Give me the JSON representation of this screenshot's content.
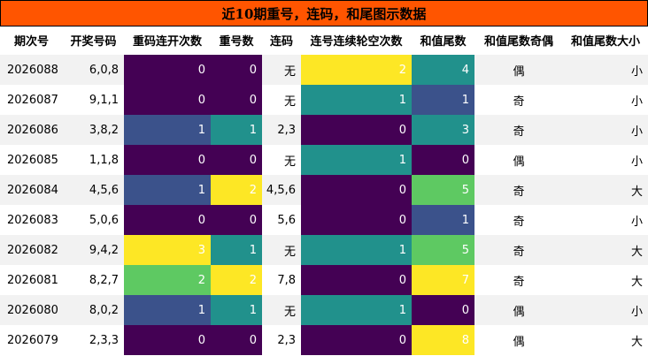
{
  "title": "近10期重号，连码，和尾图示数据",
  "columns": [
    "期次号",
    "开奖号码",
    "重码连开次数",
    "重号数",
    "连码",
    "连号连续轮空次数",
    "和值尾数",
    "和值尾数奇偶",
    "和值尾数大小"
  ],
  "colors": {
    "title_bg": "#FF5500",
    "stripe": "#F2F2F2",
    "viridis": [
      "#440154",
      "#3B528B",
      "#21918C",
      "#5EC962",
      "#FDE725"
    ]
  },
  "chart_data": {
    "type": "table",
    "title": "近10期重号，连码，和尾图示数据",
    "columns": [
      "期次号",
      "开奖号码",
      "重码连开次数",
      "重号数",
      "连码",
      "连号连续轮空次数",
      "和值尾数",
      "和值尾数奇偶",
      "和值尾数大小"
    ],
    "rows": [
      [
        "2026088",
        "6,0,8",
        0,
        0,
        "无",
        2,
        4,
        "偶",
        "小"
      ],
      [
        "2026087",
        "9,1,1",
        0,
        0,
        "无",
        1,
        1,
        "奇",
        "小"
      ],
      [
        "2026086",
        "3,8,2",
        1,
        1,
        "2,3",
        0,
        3,
        "奇",
        "小"
      ],
      [
        "2026085",
        "1,1,8",
        0,
        0,
        "无",
        1,
        0,
        "偶",
        "小"
      ],
      [
        "2026084",
        "4,5,6",
        1,
        2,
        "4,5,6",
        0,
        5,
        "奇",
        "大"
      ],
      [
        "2026083",
        "5,0,6",
        0,
        0,
        "5,6",
        0,
        1,
        "奇",
        "小"
      ],
      [
        "2026082",
        "9,4,2",
        3,
        1,
        "无",
        1,
        5,
        "奇",
        "大"
      ],
      [
        "2026081",
        "8,2,7",
        2,
        2,
        "7,8",
        0,
        7,
        "奇",
        "大"
      ],
      [
        "2026080",
        "8,0,2",
        1,
        1,
        "无",
        1,
        0,
        "偶",
        "小"
      ],
      [
        "2026079",
        "2,3,3",
        0,
        0,
        "2,3",
        0,
        8,
        "偶",
        "大"
      ]
    ],
    "heatmap_columns": [
      "重码连开次数",
      "重号数",
      "连号连续轮空次数",
      "和值尾数"
    ],
    "colormap": "viridis"
  }
}
